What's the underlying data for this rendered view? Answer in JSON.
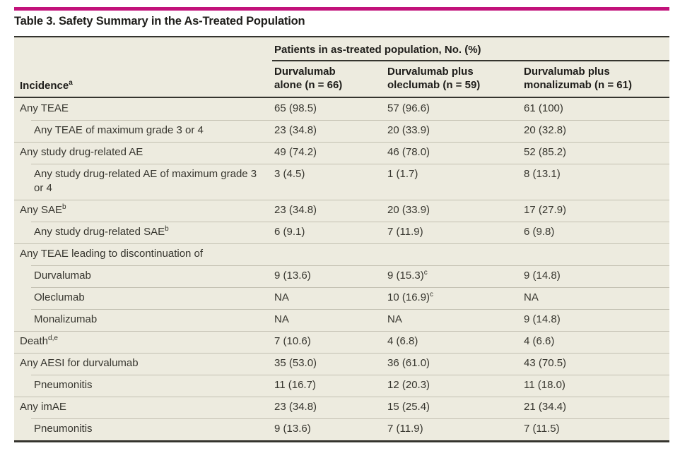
{
  "colors": {
    "accent_bar": "#c2127a",
    "table_background": "#edebdf",
    "dark_rule": "#35342e",
    "row_divider": "#c3c0b2"
  },
  "table": {
    "title": "Table 3. Safety Summary in the As-Treated Population",
    "spanner": "Patients in as-treated population, No. (%)",
    "row_header": {
      "label": "Incidence",
      "sup": "a"
    },
    "columns": [
      {
        "line1": "Durvalumab",
        "line2": "alone (n = 66)"
      },
      {
        "line1": "Durvalumab plus",
        "line2": "oleclumab (n = 59)"
      },
      {
        "line1": "Durvalumab plus",
        "line2": "monalizumab (n = 61)"
      }
    ],
    "rows": [
      {
        "label": "Any TEAE",
        "indent": false,
        "values": [
          {
            "text": "65 (98.5)"
          },
          {
            "text": "57 (96.6)"
          },
          {
            "text": "61 (100)"
          }
        ]
      },
      {
        "label": "Any TEAE of maximum grade 3 or 4",
        "indent": true,
        "values": [
          {
            "text": "23 (34.8)"
          },
          {
            "text": "20 (33.9)"
          },
          {
            "text": "20 (32.8)"
          }
        ]
      },
      {
        "label": "Any study drug-related AE",
        "indent": false,
        "values": [
          {
            "text": "49 (74.2)"
          },
          {
            "text": "46 (78.0)"
          },
          {
            "text": "52 (85.2)"
          }
        ]
      },
      {
        "label": "Any study drug-related AE of maximum grade 3 or 4",
        "indent": true,
        "values": [
          {
            "text": "3 (4.5)"
          },
          {
            "text": "1 (1.7)"
          },
          {
            "text": "8 (13.1)"
          }
        ]
      },
      {
        "label": "Any SAE",
        "sup": "b",
        "indent": false,
        "values": [
          {
            "text": "23 (34.8)"
          },
          {
            "text": "20 (33.9)"
          },
          {
            "text": "17 (27.9)"
          }
        ]
      },
      {
        "label": "Any study drug-related SAE",
        "sup": "b",
        "indent": true,
        "values": [
          {
            "text": "6 (9.1)"
          },
          {
            "text": "7 (11.9)"
          },
          {
            "text": "6 (9.8)"
          }
        ]
      },
      {
        "label": "Any TEAE leading to discontinuation of",
        "indent": false,
        "values": [
          {
            "text": ""
          },
          {
            "text": ""
          },
          {
            "text": ""
          }
        ]
      },
      {
        "label": "Durvalumab",
        "indent": true,
        "values": [
          {
            "text": "9 (13.6)"
          },
          {
            "text": "9 (15.3)",
            "sup": "c"
          },
          {
            "text": "9 (14.8)"
          }
        ]
      },
      {
        "label": "Oleclumab",
        "indent": true,
        "values": [
          {
            "text": "NA"
          },
          {
            "text": "10 (16.9)",
            "sup": "c"
          },
          {
            "text": "NA"
          }
        ]
      },
      {
        "label": "Monalizumab",
        "indent": true,
        "values": [
          {
            "text": "NA"
          },
          {
            "text": "NA"
          },
          {
            "text": "9 (14.8)"
          }
        ]
      },
      {
        "label": "Death",
        "sup": "d,e",
        "indent": false,
        "values": [
          {
            "text": "7 (10.6)"
          },
          {
            "text": "4 (6.8)"
          },
          {
            "text": "4 (6.6)"
          }
        ]
      },
      {
        "label": "Any AESI for durvalumab",
        "indent": false,
        "values": [
          {
            "text": "35 (53.0)"
          },
          {
            "text": "36 (61.0)"
          },
          {
            "text": "43 (70.5)"
          }
        ]
      },
      {
        "label": "Pneumonitis",
        "indent": true,
        "values": [
          {
            "text": "11 (16.7)"
          },
          {
            "text": "12 (20.3)"
          },
          {
            "text": "11 (18.0)"
          }
        ]
      },
      {
        "label": "Any imAE",
        "indent": false,
        "values": [
          {
            "text": "23 (34.8)"
          },
          {
            "text": "15 (25.4)"
          },
          {
            "text": "21 (34.4)"
          }
        ]
      },
      {
        "label": "Pneumonitis",
        "indent": true,
        "values": [
          {
            "text": "9 (13.6)"
          },
          {
            "text": "7 (11.9)"
          },
          {
            "text": "7 (11.5)"
          }
        ]
      }
    ]
  }
}
